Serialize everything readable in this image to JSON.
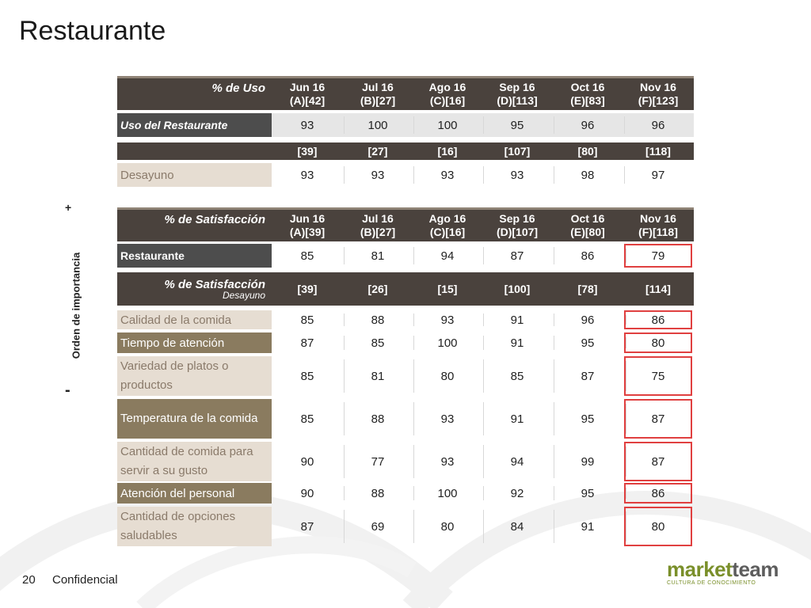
{
  "title": "Restaurante",
  "side_label": "Orden de importancia",
  "plus_sign": "+",
  "minus_sign": "-",
  "footer": {
    "page": "20",
    "text": "Confidencial"
  },
  "logo": {
    "market": "market",
    "team": "team",
    "tagline": "CULTURA DE CONOCIMIENTO"
  },
  "uso_header": {
    "label": "% de Uso",
    "cols": [
      "Jun 16\n(A)[42]",
      "Jul 16\n(B)[27]",
      "Ago 16\n(C)[16]",
      "Sep 16\n(D)[113]",
      "Oct 16\n(E)[83]",
      "Nov 16\n(F)[123]"
    ]
  },
  "uso_row": {
    "label": "Uso del Restaurante",
    "values": [
      "93",
      "100",
      "100",
      "95",
      "96",
      "96"
    ]
  },
  "base_row": {
    "label": "",
    "values": [
      "[39]",
      "[27]",
      "[16]",
      "[107]",
      "[80]",
      "[118]"
    ]
  },
  "desayuno_row": {
    "label": "Desayuno",
    "values": [
      "93",
      "93",
      "93",
      "93",
      "98",
      "97"
    ]
  },
  "sat_header": {
    "label": "% de Satisfacción",
    "cols": [
      "Jun 16\n(A)[39]",
      "Jul 16\n(B)[27]",
      "Ago 16\n(C)[16]",
      "Sep 16\n(D)[107]",
      "Oct 16\n(E)[80]",
      "Nov 16\n(F)[118]"
    ]
  },
  "restaurante_row": {
    "label": "Restaurante",
    "values": [
      "85",
      "81",
      "94",
      "87",
      "86",
      "79"
    ]
  },
  "sat_desayuno_header": {
    "label": "% de Satisfacción",
    "sublabel": "Desayuno",
    "values": [
      "[39]",
      "[26]",
      "[15]",
      "[100]",
      "[78]",
      "[114]"
    ]
  },
  "attributes": [
    {
      "label": "Calidad de la comida",
      "values": [
        "85",
        "88",
        "93",
        "91",
        "96",
        "86"
      ]
    },
    {
      "label": "Tiempo de atención",
      "values": [
        "87",
        "85",
        "100",
        "91",
        "95",
        "80"
      ]
    },
    {
      "label": "Variedad de platos o productos",
      "values": [
        "85",
        "81",
        "80",
        "85",
        "87",
        "75"
      ]
    },
    {
      "label": "Temperatura de la comida",
      "values": [
        "85",
        "88",
        "93",
        "91",
        "95",
        "87"
      ]
    },
    {
      "label": "Cantidad de comida para servir a su gusto",
      "values": [
        "90",
        "77",
        "93",
        "94",
        "99",
        "87"
      ]
    },
    {
      "label": "Atención del personal",
      "values": [
        "90",
        "88",
        "100",
        "92",
        "95",
        "86"
      ]
    },
    {
      "label": "Cantidad de opciones saludables",
      "values": [
        "87",
        "69",
        "80",
        "84",
        "91",
        "80"
      ]
    }
  ],
  "colors": {
    "dark_header": "#4a423d",
    "highlight_border": "#e04040",
    "beige": "#e6ddd2",
    "olive": "#8a7b5f"
  }
}
